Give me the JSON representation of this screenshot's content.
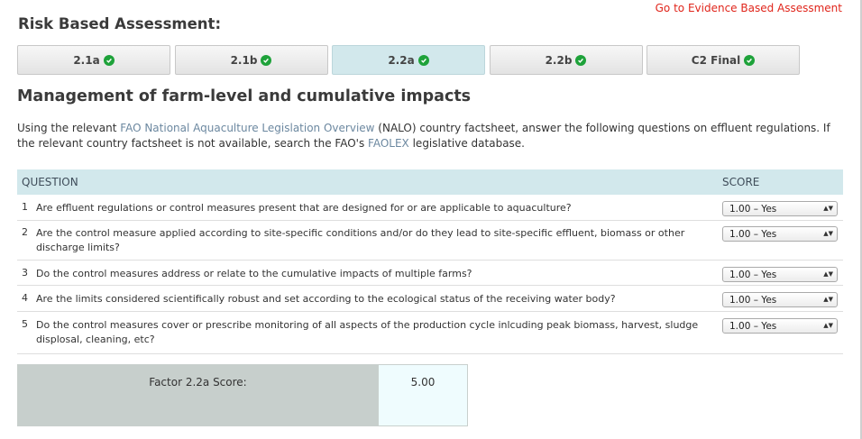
{
  "header": {
    "title": "Risk Based Assessment:",
    "evidence_link": "Go to Evidence Based Assessment"
  },
  "tabs": [
    {
      "label": "2.1a",
      "active": false
    },
    {
      "label": "2.1b",
      "active": false
    },
    {
      "label": "2.2a",
      "active": true
    },
    {
      "label": "2.2b",
      "active": false
    },
    {
      "label": "C2 Final",
      "active": false
    }
  ],
  "section": {
    "title": "Management of farm-level and cumulative impacts",
    "intro_1": "Using the relevant ",
    "intro_link_1": "FAO National Aquaculture Legislation Overview",
    "intro_2": " (NALO) country factsheet, answer the following questions on effluent regulations. If the relevant country factsheet is not available, search the FAO's ",
    "intro_link_2": "FAOLEX",
    "intro_3": " legislative database."
  },
  "table": {
    "col_question": "QUESTION",
    "col_score": "SCORE",
    "rows": [
      {
        "num": "1",
        "text": "Are effluent regulations or control measures present that are designed for or are applicable to aquaculture?",
        "score": "1.00 – Yes"
      },
      {
        "num": "2",
        "text": "Are the control measure applied according to site-specific conditions and/or do they lead to site-specific effluent, biomass or other discharge limits?",
        "score": "1.00 – Yes"
      },
      {
        "num": "3",
        "text": "Do the control measures address or relate to the cumulative impacts of multiple farms?",
        "score": "1.00 – Yes"
      },
      {
        "num": "4",
        "text": "Are the limits considered scientifically robust and set according to the ecological status of the receiving water body?",
        "score": "1.00 – Yes"
      },
      {
        "num": "5",
        "text": "Do the control measures cover or prescribe monitoring of all aspects of the production cycle inlcuding peak biomass, harvest, sludge displosal, cleaning, etc?",
        "score": "1.00 – Yes"
      }
    ]
  },
  "factor": {
    "label": "Factor 2.2a Score:",
    "value": "5.00"
  },
  "colors": {
    "accent_active_tab": "#d2e8ec",
    "link_red": "#e0251b",
    "check_green": "#1ea23a"
  }
}
